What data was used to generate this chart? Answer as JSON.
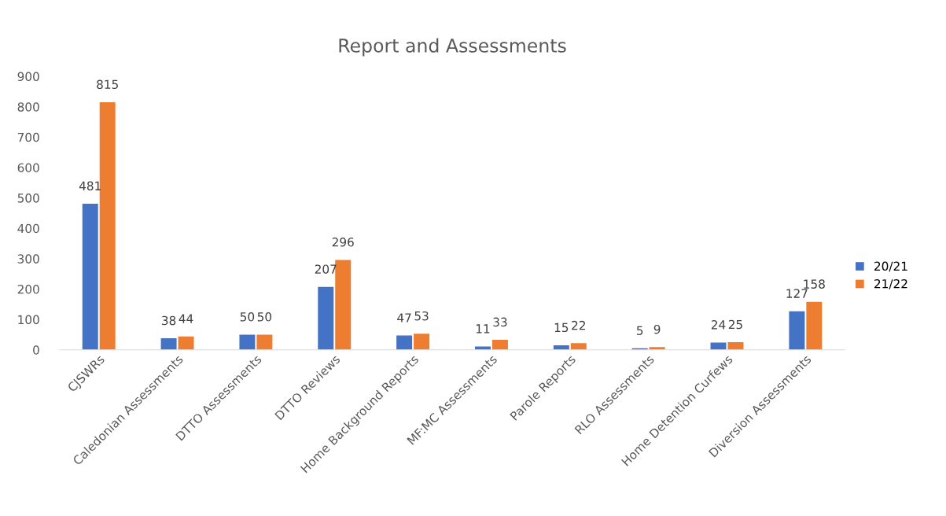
{
  "chart_data": {
    "type": "bar",
    "title": "Report and Assessments",
    "categories": [
      "CJSWRs",
      "Caledonian Assessments",
      "DTTO Assessments",
      "DTTO Reviews",
      "Home Background Reports",
      "MF:MC Assessments",
      "Parole Reports",
      "RLO Assessments",
      "Home Detention Curfews",
      "Diversion Assessments"
    ],
    "series": [
      {
        "name": "20/21",
        "color": "#4472c4",
        "values": [
          481,
          38,
          50,
          207,
          47,
          11,
          15,
          5,
          24,
          127
        ]
      },
      {
        "name": "21/22",
        "color": "#ed7d31",
        "values": [
          815,
          44,
          50,
          296,
          53,
          33,
          22,
          9,
          25,
          158
        ]
      }
    ],
    "ylim": [
      0,
      900
    ],
    "yticks": [
      0,
      100,
      200,
      300,
      400,
      500,
      600,
      700,
      800,
      900
    ],
    "data_labels": true,
    "grid": false,
    "legend": "right"
  }
}
